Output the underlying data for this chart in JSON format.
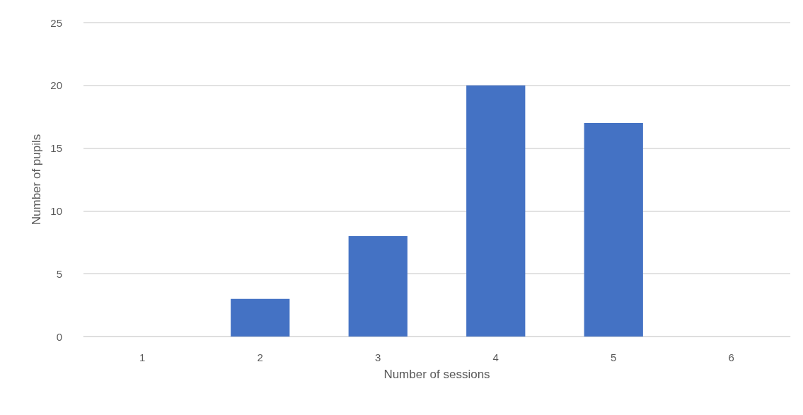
{
  "chart_data": {
    "type": "bar",
    "xlabel": "Number of sessions",
    "ylabel": "Number of pupils",
    "categories": [
      "1",
      "2",
      "3",
      "4",
      "5",
      "6"
    ],
    "values": [
      0,
      3,
      8,
      20,
      17,
      0
    ],
    "color": "#4472c4",
    "ylim": [
      0,
      25
    ],
    "yticks": [
      0,
      5,
      10,
      15,
      20,
      25
    ],
    "grid": "y"
  }
}
